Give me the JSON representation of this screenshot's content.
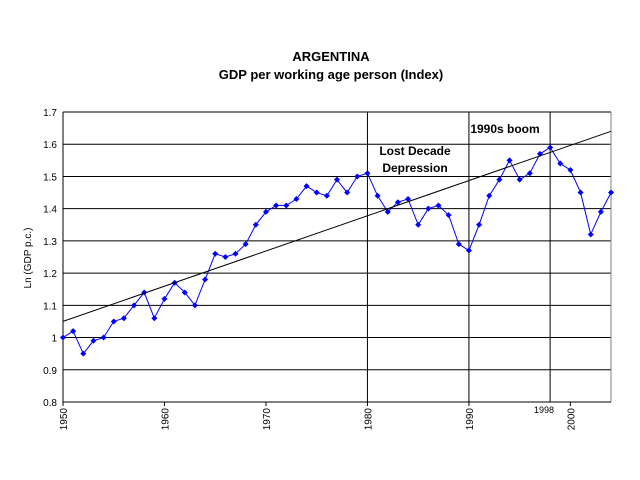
{
  "chart_data": {
    "type": "line",
    "title": "ARGENTINA",
    "subtitle": "GDP per working age person (Index)",
    "xlabel": "",
    "ylabel": "Ln (GDP p.c.)",
    "xlim": [
      1950,
      2004
    ],
    "ylim": [
      0.8,
      1.7
    ],
    "y_ticks": [
      "0.8",
      "0.9",
      "1",
      "1.1",
      "1.2",
      "1.3",
      "1.4",
      "1.5",
      "1.6",
      "1.7"
    ],
    "x_ticks": [
      "1950",
      "1960",
      "1970",
      "1980",
      "1990",
      "2000"
    ],
    "grid": "horizontal",
    "series": [
      {
        "color": "#0000ff",
        "marker": "diamond",
        "x": [
          1950,
          1951,
          1952,
          1953,
          1954,
          1955,
          1956,
          1957,
          1958,
          1959,
          1960,
          1961,
          1962,
          1963,
          1964,
          1965,
          1966,
          1967,
          1968,
          1969,
          1970,
          1971,
          1972,
          1973,
          1974,
          1975,
          1976,
          1977,
          1978,
          1979,
          1980,
          1981,
          1982,
          1983,
          1984,
          1985,
          1986,
          1987,
          1988,
          1989,
          1990,
          1991,
          1992,
          1993,
          1994,
          1995,
          1996,
          1997,
          1998,
          1999,
          2000,
          2001,
          2002,
          2003,
          2004
        ],
        "values": [
          1.0,
          1.02,
          0.95,
          0.99,
          1.0,
          1.05,
          1.06,
          1.1,
          1.14,
          1.06,
          1.12,
          1.17,
          1.14,
          1.1,
          1.18,
          1.26,
          1.25,
          1.26,
          1.29,
          1.35,
          1.39,
          1.41,
          1.41,
          1.43,
          1.47,
          1.45,
          1.44,
          1.49,
          1.45,
          1.5,
          1.51,
          1.44,
          1.39,
          1.42,
          1.43,
          1.35,
          1.4,
          1.41,
          1.38,
          1.29,
          1.27,
          1.35,
          1.44,
          1.49,
          1.55,
          1.49,
          1.51,
          1.57,
          1.59,
          1.54,
          1.52,
          1.45,
          1.32,
          1.39,
          1.45
        ]
      },
      {
        "color": "#000000",
        "type": "trend",
        "x": [
          1950,
          2004
        ],
        "values": [
          1.05,
          1.64
        ]
      }
    ],
    "vlines": [
      1980,
      1990,
      1998
    ],
    "annotations": {
      "lost_decade_line1": "Lost Decade",
      "lost_decade_line2": "Depression",
      "boom": "1990s boom",
      "year_1998": "1998"
    }
  }
}
